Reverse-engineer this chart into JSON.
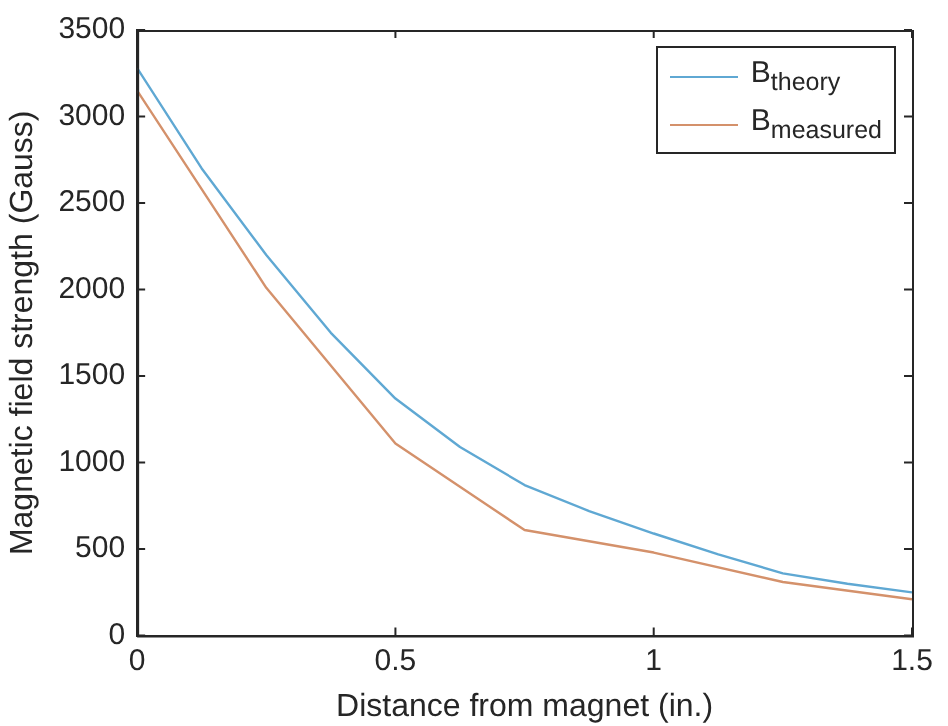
{
  "chart_data": {
    "type": "line",
    "xlabel": "Distance from magnet (in.)",
    "ylabel": "Magnetic field strength (Gauss)",
    "xlim": [
      0,
      1.5
    ],
    "xticks": [
      0,
      0.5,
      1,
      1.5
    ],
    "ylim": [
      0,
      3500
    ],
    "yticks": [
      0,
      500,
      1000,
      1500,
      2000,
      2500,
      3000,
      3500
    ],
    "grid": false,
    "legend": "top right",
    "marker": "none",
    "line_style": "solid",
    "series": [
      {
        "name": "B$_{theory}$",
        "color": "#5fa8d3",
        "x": [
          0,
          0.125,
          0.25,
          0.375,
          0.5,
          0.625,
          0.75,
          0.875,
          1,
          1.125,
          1.25,
          1.375,
          1.5
        ],
        "values": [
          3280,
          2700,
          2200,
          1750,
          1370,
          1090,
          870,
          720,
          590,
          470,
          360,
          300,
          250
        ]
      },
      {
        "name": "B$_{measured}$",
        "color": "#d4916b",
        "x": [
          0,
          0.25,
          0.5,
          0.75,
          1,
          1.25,
          1.5
        ],
        "values": [
          3150,
          2010,
          1110,
          610,
          480,
          310,
          210
        ]
      }
    ]
  }
}
